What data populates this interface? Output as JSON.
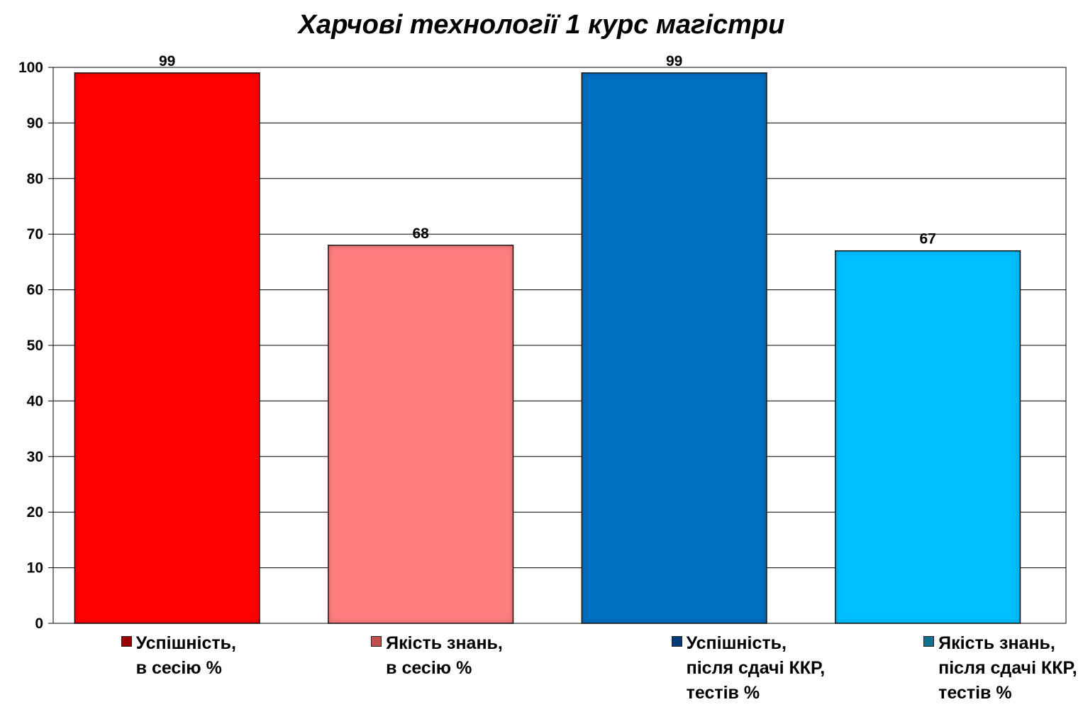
{
  "chart_data": {
    "type": "bar",
    "title": "Харчові технології 1 курс магістри",
    "xlabel": "",
    "ylabel": "",
    "ylim": [
      0,
      100
    ],
    "yticks": [
      0,
      10,
      20,
      30,
      40,
      50,
      60,
      70,
      80,
      90,
      100
    ],
    "grid": true,
    "legend_position": "bottom",
    "categories": [
      "Успішність,\nв сесію %",
      "Якість знань,\nв сесію %",
      "Успішність,\nпісля сдачі ККР,\nтестів %",
      "Якість знань,\nпісля сдачі ККР,\nтестів %"
    ],
    "values": [
      99,
      68,
      99,
      67
    ],
    "colors": [
      "#ff0000",
      "#ff7f7f",
      "#0070c0",
      "#00bfff"
    ],
    "legend_swatch_colors": [
      "#990000",
      "#c05050",
      "#003c78",
      "#107090"
    ],
    "data_labels": [
      "99",
      "68",
      "99",
      "67"
    ]
  }
}
